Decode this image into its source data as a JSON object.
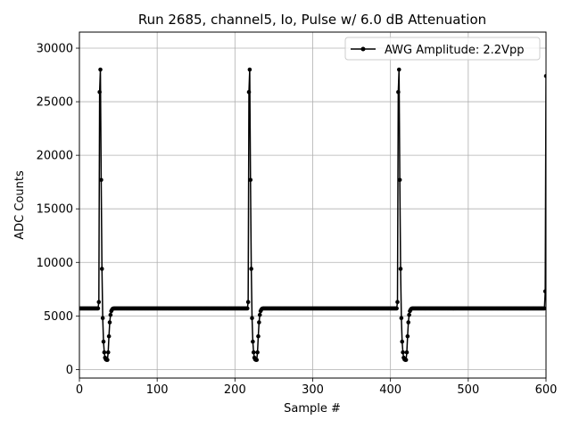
{
  "chart_data": {
    "type": "line",
    "title": "Run 2685, channel5, Io, Pulse w/ 6.0 dB Attenuation",
    "xlabel": "Sample #",
    "ylabel": "ADC Counts",
    "xlim": [
      0,
      600
    ],
    "ylim": [
      -800,
      31500
    ],
    "x_ticks": [
      0,
      100,
      200,
      300,
      400,
      500,
      600
    ],
    "y_ticks": [
      0,
      5000,
      10000,
      15000,
      20000,
      25000,
      30000
    ],
    "grid": true,
    "legend_position": "top-right",
    "baseline": 5700,
    "pulse_offsets": [
      0,
      1,
      2,
      3,
      4,
      5,
      6,
      7,
      8,
      9,
      10,
      11,
      12,
      13,
      14,
      15,
      16,
      17,
      18,
      19,
      20
    ],
    "pulse_shape": [
      6300,
      25900,
      28000,
      17700,
      9400,
      4800,
      2600,
      1600,
      1100,
      950,
      900,
      900,
      1600,
      3100,
      4400,
      5100,
      5450,
      5600,
      5680,
      5700,
      5700
    ],
    "pulse_starts": [
      25,
      217,
      409
    ],
    "tail": {
      "x": [
        599,
        600
      ],
      "y": [
        7300,
        27400
      ]
    },
    "series": [
      {
        "name": "AWG Amplitude: 2.2Vpp",
        "color": "#000000",
        "marker": "circle"
      }
    ]
  }
}
